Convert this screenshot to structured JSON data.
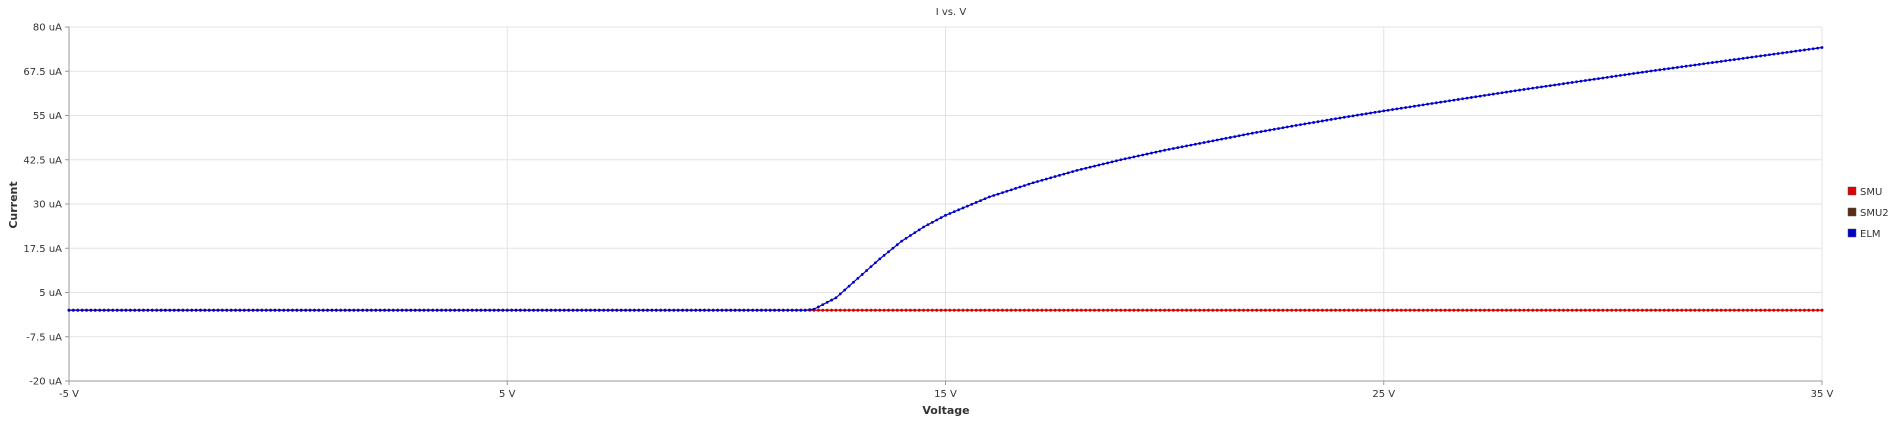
{
  "chart_data": {
    "type": "scatter",
    "title": "I vs. V",
    "xlabel": "Voltage",
    "ylabel": "Current",
    "xlim": [
      -5,
      35
    ],
    "ylim": [
      -20,
      80
    ],
    "x_ticks": [
      {
        "value": -5,
        "label": "-5 V"
      },
      {
        "value": 5,
        "label": "5 V"
      },
      {
        "value": 15,
        "label": "15 V"
      },
      {
        "value": 25,
        "label": "25 V"
      },
      {
        "value": 35,
        "label": "35 V"
      }
    ],
    "y_ticks": [
      {
        "value": -20,
        "label": "-20 uA"
      },
      {
        "value": -7.5,
        "label": "-7.5 uA"
      },
      {
        "value": 5,
        "label": "5 uA"
      },
      {
        "value": 17.5,
        "label": "17.5 uA"
      },
      {
        "value": 30,
        "label": "30 uA"
      },
      {
        "value": 42.5,
        "label": "42.5 uA"
      },
      {
        "value": 55,
        "label": "55 uA"
      },
      {
        "value": 67.5,
        "label": "67.5 uA"
      },
      {
        "value": 80,
        "label": "80 uA"
      }
    ],
    "grid": true,
    "legend_position": "right",
    "series": [
      {
        "name": "SMU",
        "color": "#dd0000",
        "x_range": [
          -5,
          35
        ],
        "step": 0.1,
        "x": [
          -5,
          12,
          35
        ],
        "y": [
          0,
          0,
          0
        ]
      },
      {
        "name": "SMU2",
        "color": "#5a2d14",
        "x_range": [
          -5,
          35
        ],
        "step": 0.1,
        "x": [
          -5,
          35
        ],
        "y": [
          0,
          0
        ]
      },
      {
        "name": "ELM",
        "color": "#0000cc",
        "x_range": [
          -5,
          35
        ],
        "step": 0.1,
        "x": [
          -5,
          0,
          5,
          10,
          11.8,
          12,
          12.5,
          13,
          13.5,
          14,
          14.5,
          15,
          16,
          17,
          18,
          19,
          20,
          21,
          22,
          23,
          24,
          25,
          26,
          27,
          28,
          29,
          30,
          31,
          32,
          33,
          34,
          35
        ],
        "y": [
          0,
          0,
          0,
          0,
          0,
          0.3,
          3.5,
          9,
          14.5,
          19.5,
          23.5,
          26.8,
          32,
          36,
          39.5,
          42.5,
          45.2,
          47.6,
          50,
          52.2,
          54.3,
          56.3,
          58.2,
          60.1,
          62,
          63.8,
          65.6,
          67.4,
          69.1,
          70.8,
          72.5,
          74.2
        ]
      }
    ]
  }
}
